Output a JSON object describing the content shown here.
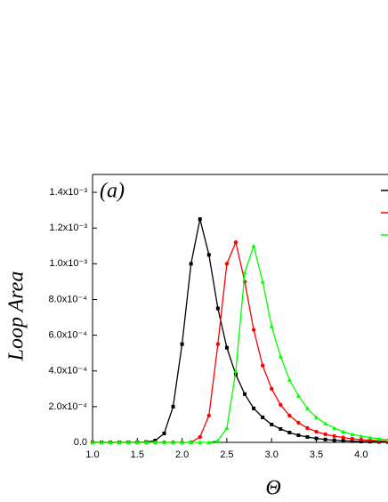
{
  "chart_data": {
    "type": "line",
    "annotation": "(a)",
    "x_label": "Θ",
    "y_label": "Loop Area",
    "x": [
      1.0,
      1.1,
      1.2,
      1.3,
      1.4,
      1.5,
      1.6,
      1.7,
      1.8,
      1.9,
      2.0,
      2.1,
      2.2,
      2.3,
      2.4,
      2.5,
      2.6,
      2.7,
      2.8,
      2.9,
      3.0,
      3.1,
      3.2,
      3.3,
      3.4,
      3.5,
      3.6,
      3.7,
      3.8,
      3.9,
      4.0,
      4.1,
      4.2,
      4.3
    ],
    "series": [
      {
        "color": "#000000",
        "marker": "square",
        "values": [
          0,
          0,
          0,
          0,
          0,
          0,
          2e-06,
          1e-05,
          5e-05,
          0.0002,
          0.00055,
          0.001,
          0.00125,
          0.00105,
          0.00075,
          0.00053,
          0.00038,
          0.00027,
          0.00019,
          0.00014,
          0.0001,
          7.5e-05,
          5.5e-05,
          4e-05,
          3e-05,
          2.2e-05,
          1.6e-05,
          1.2e-05,
          9e-06,
          7e-06,
          5e-06,
          4e-06,
          3e-06,
          2e-06
        ]
      },
      {
        "color": "#ff0000",
        "marker": "circle",
        "values": [
          0,
          0,
          0,
          0,
          0,
          0,
          0,
          0,
          0,
          0,
          0,
          0,
          3e-05,
          0.00015,
          0.00055,
          0.001,
          0.00112,
          0.0009,
          0.00063,
          0.00043,
          0.0003,
          0.00021,
          0.00015,
          0.00011,
          8e-05,
          6e-05,
          4.5e-05,
          3.5e-05,
          2.7e-05,
          2e-05,
          1.5e-05,
          1.2e-05,
          9e-06,
          7e-06
        ]
      },
      {
        "color": "#00ff00",
        "marker": "triangle",
        "values": [
          0,
          0,
          0,
          0,
          0,
          0,
          0,
          0,
          0,
          0,
          0,
          0,
          0,
          0,
          1e-05,
          8e-05,
          0.0004,
          0.00095,
          0.0011,
          0.0009,
          0.00065,
          0.00048,
          0.00035,
          0.00026,
          0.00019,
          0.00014,
          0.000105,
          8e-05,
          6e-05,
          4.5e-05,
          3.5e-05,
          2.7e-05,
          2e-05,
          1.5e-05
        ]
      }
    ],
    "xlim": [
      1.0,
      4.3
    ],
    "ylim": [
      0,
      0.0015
    ],
    "xticks": [
      {
        "value": 1,
        "label": "1.0"
      },
      1.5,
      {
        "value": 2,
        "label": "2.0"
      },
      2.5,
      {
        "value": 3,
        "label": "3.0"
      },
      3.5,
      {
        "value": 4,
        "label": "4.0"
      }
    ],
    "yticks": [
      {
        "value": 0,
        "label": "0.0"
      },
      {
        "value": 0.0002,
        "label": "2.0x10⁻⁴"
      },
      {
        "value": 0.0004,
        "label": "4.0x10⁻⁴"
      },
      {
        "value": 0.0006,
        "label": "6.0x10⁻⁴"
      },
      {
        "value": 0.0008,
        "label": "8.0x10⁻⁴"
      },
      {
        "value": 0.001,
        "label": "1.0x10⁻³"
      },
      {
        "value": 0.0012,
        "label": "1.2x10⁻³"
      },
      {
        "value": 0.0014,
        "label": "1.4x10⁻³"
      }
    ],
    "legend": "top-right"
  }
}
